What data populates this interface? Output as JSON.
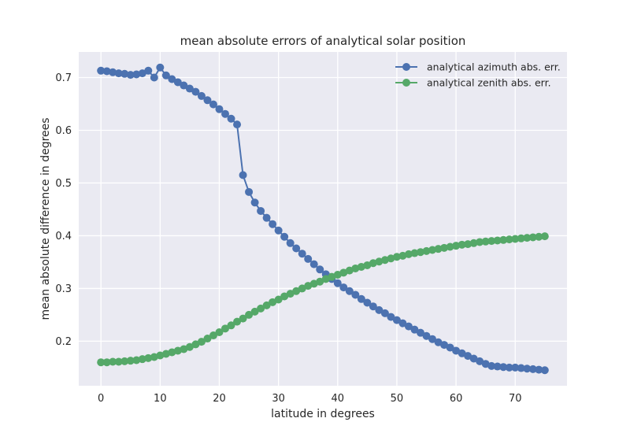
{
  "chart_data": {
    "type": "line",
    "title": "mean absolute errors of analytical solar position",
    "xlabel": "latitude in degrees",
    "ylabel": "mean absolute difference in degrees",
    "xlim": [
      -3.75,
      78.75
    ],
    "ylim": [
      0.1155,
      0.7485
    ],
    "xticks": [
      0,
      10,
      20,
      30,
      40,
      50,
      60,
      70
    ],
    "yticks": [
      0.2,
      0.3,
      0.4,
      0.5,
      0.6,
      0.7
    ],
    "ytick_labels": [
      "0.2",
      "0.3",
      "0.4",
      "0.5",
      "0.6",
      "0.7"
    ],
    "grid": true,
    "legend_position": "top-right",
    "x": [
      0,
      1,
      2,
      3,
      4,
      5,
      6,
      7,
      8,
      9,
      10,
      11,
      12,
      13,
      14,
      15,
      16,
      17,
      18,
      19,
      20,
      21,
      22,
      23,
      24,
      25,
      26,
      27,
      28,
      29,
      30,
      31,
      32,
      33,
      34,
      35,
      36,
      37,
      38,
      39,
      40,
      41,
      42,
      43,
      44,
      45,
      46,
      47,
      48,
      49,
      50,
      51,
      52,
      53,
      54,
      55,
      56,
      57,
      58,
      59,
      60,
      61,
      62,
      63,
      64,
      65,
      66,
      67,
      68,
      69,
      70,
      71,
      72,
      73,
      74,
      75
    ],
    "series": [
      {
        "name": "analytical azimuth abs. err.",
        "color": "#4c72b0",
        "values": [
          0.713,
          0.712,
          0.71,
          0.708,
          0.707,
          0.705,
          0.706,
          0.708,
          0.713,
          0.7,
          0.719,
          0.704,
          0.697,
          0.691,
          0.685,
          0.679,
          0.673,
          0.665,
          0.657,
          0.649,
          0.64,
          0.631,
          0.622,
          0.611,
          0.515,
          0.483,
          0.463,
          0.447,
          0.434,
          0.422,
          0.41,
          0.398,
          0.386,
          0.376,
          0.366,
          0.356,
          0.346,
          0.336,
          0.327,
          0.318,
          0.31,
          0.302,
          0.295,
          0.288,
          0.28,
          0.273,
          0.266,
          0.259,
          0.253,
          0.246,
          0.24,
          0.234,
          0.228,
          0.222,
          0.216,
          0.21,
          0.204,
          0.198,
          0.193,
          0.188,
          0.182,
          0.177,
          0.172,
          0.167,
          0.162,
          0.157,
          0.153,
          0.152,
          0.151,
          0.15,
          0.15,
          0.149,
          0.148,
          0.147,
          0.146,
          0.145
        ]
      },
      {
        "name": "analytical zenith abs. err.",
        "color": "#55a868",
        "values": [
          0.16,
          0.16,
          0.161,
          0.161,
          0.162,
          0.163,
          0.164,
          0.166,
          0.168,
          0.17,
          0.173,
          0.176,
          0.179,
          0.182,
          0.185,
          0.189,
          0.194,
          0.199,
          0.205,
          0.211,
          0.217,
          0.224,
          0.23,
          0.237,
          0.243,
          0.25,
          0.256,
          0.262,
          0.268,
          0.274,
          0.279,
          0.285,
          0.29,
          0.295,
          0.3,
          0.305,
          0.309,
          0.313,
          0.318,
          0.322,
          0.326,
          0.33,
          0.334,
          0.338,
          0.341,
          0.344,
          0.348,
          0.351,
          0.354,
          0.357,
          0.36,
          0.362,
          0.365,
          0.367,
          0.369,
          0.371,
          0.373,
          0.375,
          0.377,
          0.379,
          0.381,
          0.383,
          0.384,
          0.386,
          0.388,
          0.389,
          0.39,
          0.391,
          0.392,
          0.393,
          0.394,
          0.395,
          0.396,
          0.397,
          0.398,
          0.399
        ]
      }
    ]
  }
}
